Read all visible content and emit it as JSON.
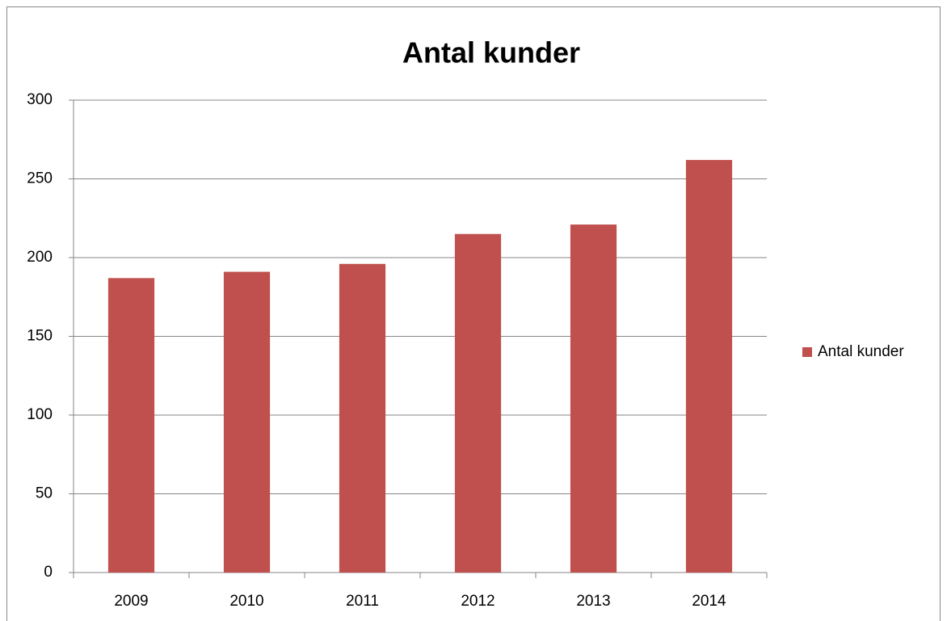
{
  "chart_data": {
    "type": "bar",
    "title": "Antal kunder",
    "categories": [
      "2009",
      "2010",
      "2011",
      "2012",
      "2013",
      "2014"
    ],
    "series": [
      {
        "name": "Antal kunder",
        "color": "#c0504d",
        "values": [
          187,
          191,
          196,
          215,
          221,
          262
        ]
      }
    ],
    "ylim": [
      0,
      300
    ],
    "yticks": [
      0,
      50,
      100,
      150,
      200,
      250,
      300
    ],
    "grid": true,
    "legend": "right"
  }
}
